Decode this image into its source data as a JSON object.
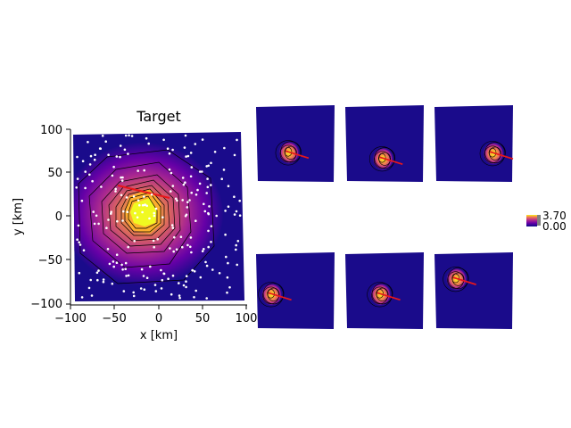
{
  "chart_data": [
    {
      "type": "heatmap",
      "title": "Target",
      "xlabel": "x [km]",
      "ylabel": "y [km]",
      "xlim": [
        -100,
        100
      ],
      "ylim": [
        -100,
        100
      ],
      "xticks": [
        "−100",
        "−50",
        "0",
        "50",
        "100"
      ],
      "yticks": [
        "100",
        "50",
        "0",
        "−50",
        "−100"
      ],
      "colormap": "plasma",
      "peak": {
        "x": -18,
        "y": 2
      },
      "direction_line": {
        "x1": -30,
        "y1": 14,
        "x2": 5,
        "y2": 22
      },
      "grid": false
    },
    {
      "type": "heatmap",
      "panel": 1,
      "blob": {
        "x": 0.42,
        "y": 0.62
      }
    },
    {
      "type": "heatmap",
      "panel": 2,
      "blob": {
        "x": 0.48,
        "y": 0.7
      }
    },
    {
      "type": "heatmap",
      "panel": 3,
      "blob": {
        "x": 0.75,
        "y": 0.63
      }
    },
    {
      "type": "heatmap",
      "panel": 4,
      "blob": {
        "x": 0.2,
        "y": 0.55
      }
    },
    {
      "type": "heatmap",
      "panel": 5,
      "blob": {
        "x": 0.45,
        "y": 0.55
      }
    },
    {
      "type": "heatmap",
      "panel": 6,
      "blob": {
        "x": 0.28,
        "y": 0.35
      }
    }
  ],
  "colorbar": {
    "labels": [
      "3.70",
      "0.00"
    ],
    "colors": [
      "#0d0887",
      "#6a00a8",
      "#b12a90",
      "#e16462",
      "#fca636",
      "#f0f921"
    ]
  }
}
